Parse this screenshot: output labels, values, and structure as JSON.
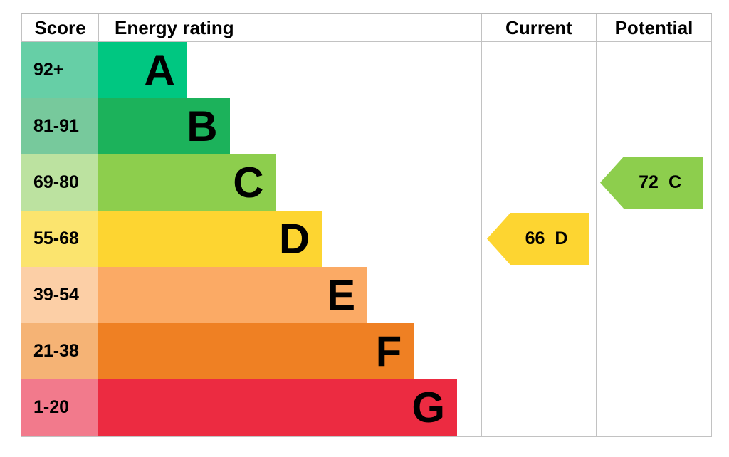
{
  "header": {
    "score": "Score",
    "energy_rating": "Energy rating",
    "current": "Current",
    "potential": "Potential"
  },
  "colors": {
    "background": "#ffffff",
    "grid_border": "#c2c2c2",
    "text": "#000000"
  },
  "chart_data": {
    "type": "bar",
    "columns": [
      "Score",
      "Energy rating",
      "Current",
      "Potential"
    ],
    "bands": [
      {
        "letter": "A",
        "score_range": "92+",
        "color": "#00c781",
        "tint_color": "#66cfa6",
        "bar_width_pct": 23.2
      },
      {
        "letter": "B",
        "score_range": "81-91",
        "color": "#1cb25b",
        "tint_color": "#77c99c",
        "bar_width_pct": 34.3
      },
      {
        "letter": "C",
        "score_range": "69-80",
        "color": "#8dce4d",
        "tint_color": "#bce2a0",
        "bar_width_pct": 46.4
      },
      {
        "letter": "D",
        "score_range": "55-68",
        "color": "#fdd531",
        "tint_color": "#fbe46e",
        "bar_width_pct": 58.4
      },
      {
        "letter": "E",
        "score_range": "39-54",
        "color": "#fbaa65",
        "tint_color": "#fccfa6",
        "bar_width_pct": 70.3
      },
      {
        "letter": "F",
        "score_range": "21-38",
        "color": "#ef8023",
        "tint_color": "#f5b375",
        "bar_width_pct": 82.4
      },
      {
        "letter": "G",
        "score_range": "1-20",
        "color": "#ec2b41",
        "tint_color": "#f27a8c",
        "bar_width_pct": 93.7
      }
    ],
    "current": {
      "value": 66,
      "band": "D",
      "band_index": 3,
      "color": "#fdd531"
    },
    "potential": {
      "value": 72,
      "band": "C",
      "band_index": 2,
      "color": "#8dce4d"
    }
  }
}
